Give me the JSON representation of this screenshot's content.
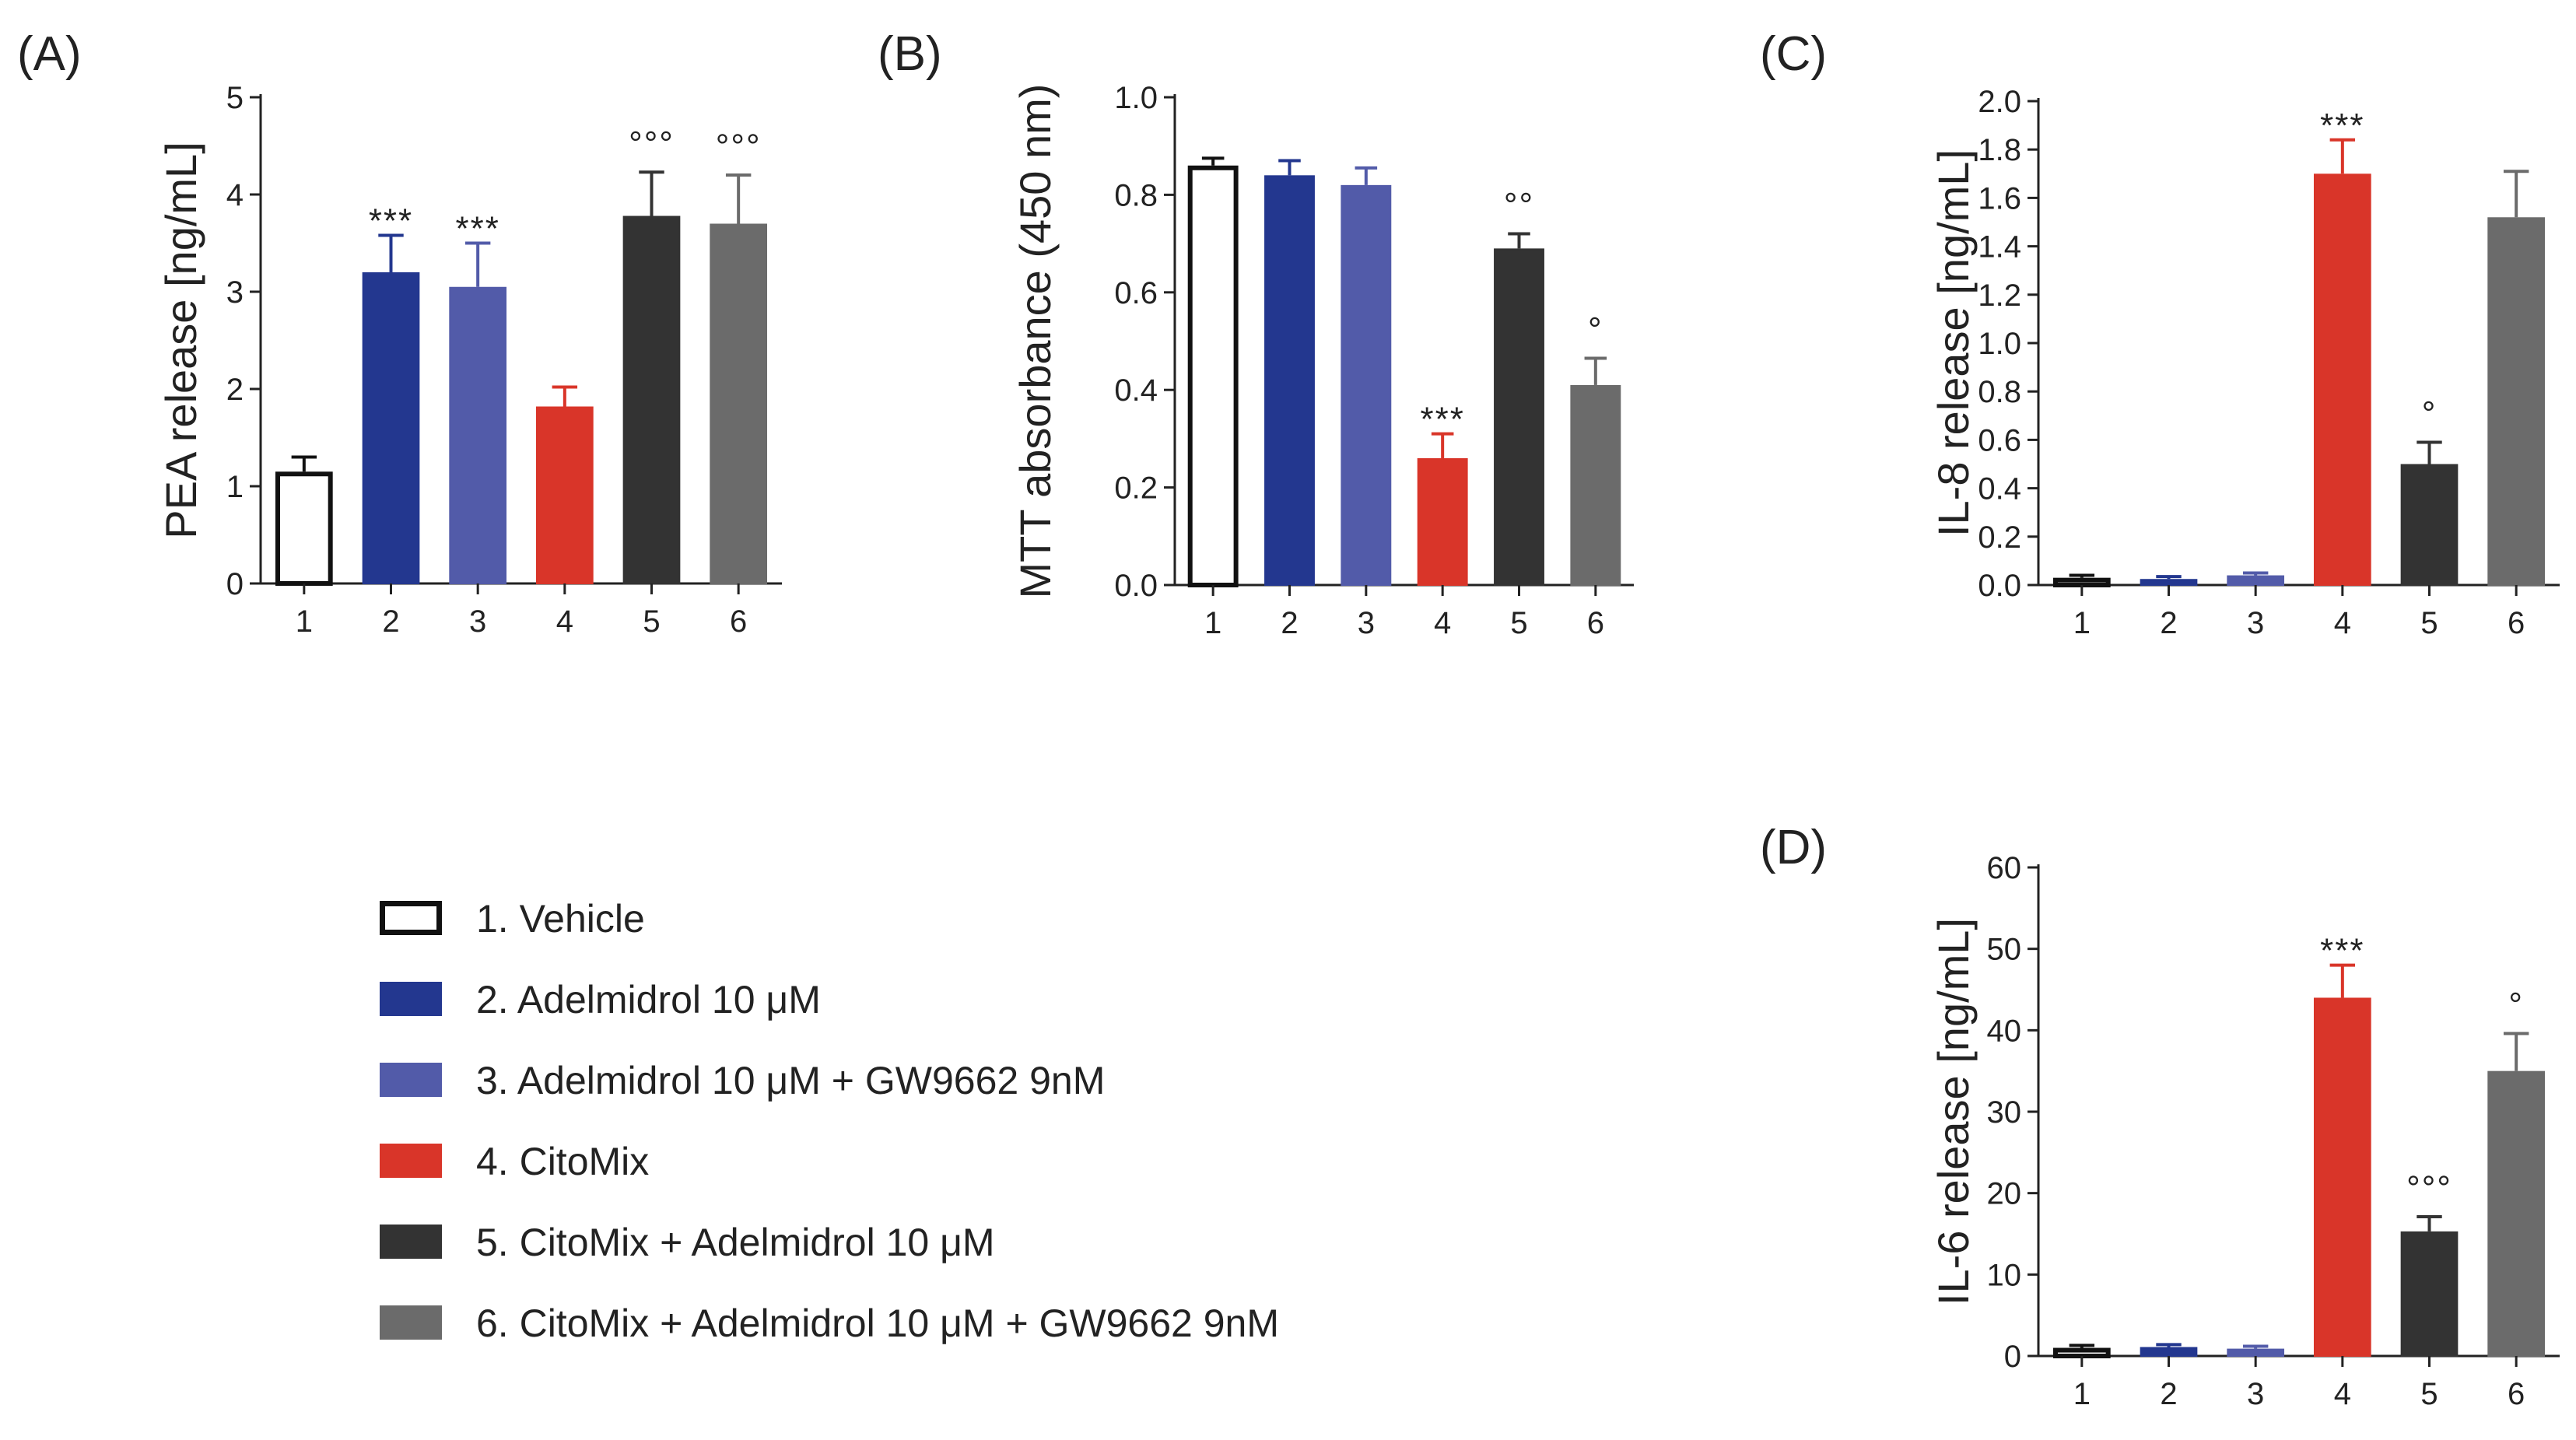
{
  "figure": {
    "legend": [
      {
        "label": "1. Vehicle",
        "color": "#ffffff",
        "stroke": "#111111"
      },
      {
        "label": "2. Adelmidrol 10 μM",
        "color": "#23378f",
        "stroke": "#23378f"
      },
      {
        "label": "3. Adelmidrol 10 μM + GW9662 9nM",
        "color": "#525ba9",
        "stroke": "#525ba9"
      },
      {
        "label": "4. CitoMix",
        "color": "#d93529",
        "stroke": "#d93529"
      },
      {
        "label": "5. CitoMix + Adelmidrol 10 μM",
        "color": "#333333",
        "stroke": "#333333"
      },
      {
        "label": "6. CitoMix + Adelmidrol 10 μM + GW9662 9nM",
        "color": "#6b6b6b",
        "stroke": "#6b6b6b"
      }
    ]
  },
  "chart_data": [
    {
      "panel": "(A)",
      "type": "bar",
      "categories": [
        "1",
        "2",
        "3",
        "4",
        "5",
        "6"
      ],
      "values": [
        1.15,
        3.2,
        3.05,
        1.82,
        3.78,
        3.7
      ],
      "errors": [
        0.15,
        0.38,
        0.45,
        0.2,
        0.45,
        0.5
      ],
      "annotations": [
        "",
        "***",
        "***",
        "",
        "°°°",
        "°°°"
      ],
      "ylabel": "PEA release [ng/mL]",
      "xlabel": "",
      "ylim": [
        0,
        5
      ],
      "yticks": [
        "0",
        "1",
        "2",
        "3",
        "4",
        "5"
      ]
    },
    {
      "panel": "(B)",
      "type": "bar",
      "categories": [
        "1",
        "2",
        "3",
        "4",
        "5",
        "6"
      ],
      "values": [
        0.86,
        0.84,
        0.82,
        0.26,
        0.69,
        0.41
      ],
      "errors": [
        0.015,
        0.03,
        0.035,
        0.05,
        0.03,
        0.055
      ],
      "annotations": [
        "",
        "",
        "",
        "***",
        "°°",
        "°"
      ],
      "ylabel": "MTT absorbance (450 nm)",
      "xlabel": "",
      "ylim": [
        0,
        1.0
      ],
      "yticks": [
        "0.0",
        "0.2",
        "0.4",
        "0.6",
        "0.8",
        "1.0"
      ]
    },
    {
      "panel": "(C)",
      "type": "bar",
      "categories": [
        "1",
        "2",
        "3",
        "4",
        "5",
        "6"
      ],
      "values": [
        0.03,
        0.025,
        0.04,
        1.7,
        0.5,
        1.52
      ],
      "errors": [
        0.01,
        0.01,
        0.01,
        0.14,
        0.09,
        0.19
      ],
      "annotations": [
        "",
        "",
        "",
        "***",
        "°",
        ""
      ],
      "ylabel": "IL-8 release [ng/mL]",
      "xlabel": "",
      "ylim": [
        0,
        2.0
      ],
      "yticks": [
        "0.0",
        "0.2",
        "0.4",
        "0.6",
        "0.8",
        "1.0",
        "1.2",
        "1.4",
        "1.6",
        "1.8",
        "2.0"
      ]
    },
    {
      "panel": "(D)",
      "type": "bar",
      "categories": [
        "1",
        "2",
        "3",
        "4",
        "5",
        "6"
      ],
      "values": [
        1.0,
        1.1,
        0.9,
        44.0,
        15.3,
        35.0
      ],
      "errors": [
        0.3,
        0.3,
        0.3,
        4.0,
        1.8,
        4.6
      ],
      "annotations": [
        "",
        "",
        "",
        "***",
        "°°°",
        "°"
      ],
      "ylabel": "IL-6 release [ng/mL]",
      "xlabel": "",
      "ylim": [
        0,
        60
      ],
      "yticks": [
        "0",
        "10",
        "20",
        "30",
        "40",
        "50",
        "60"
      ]
    }
  ]
}
